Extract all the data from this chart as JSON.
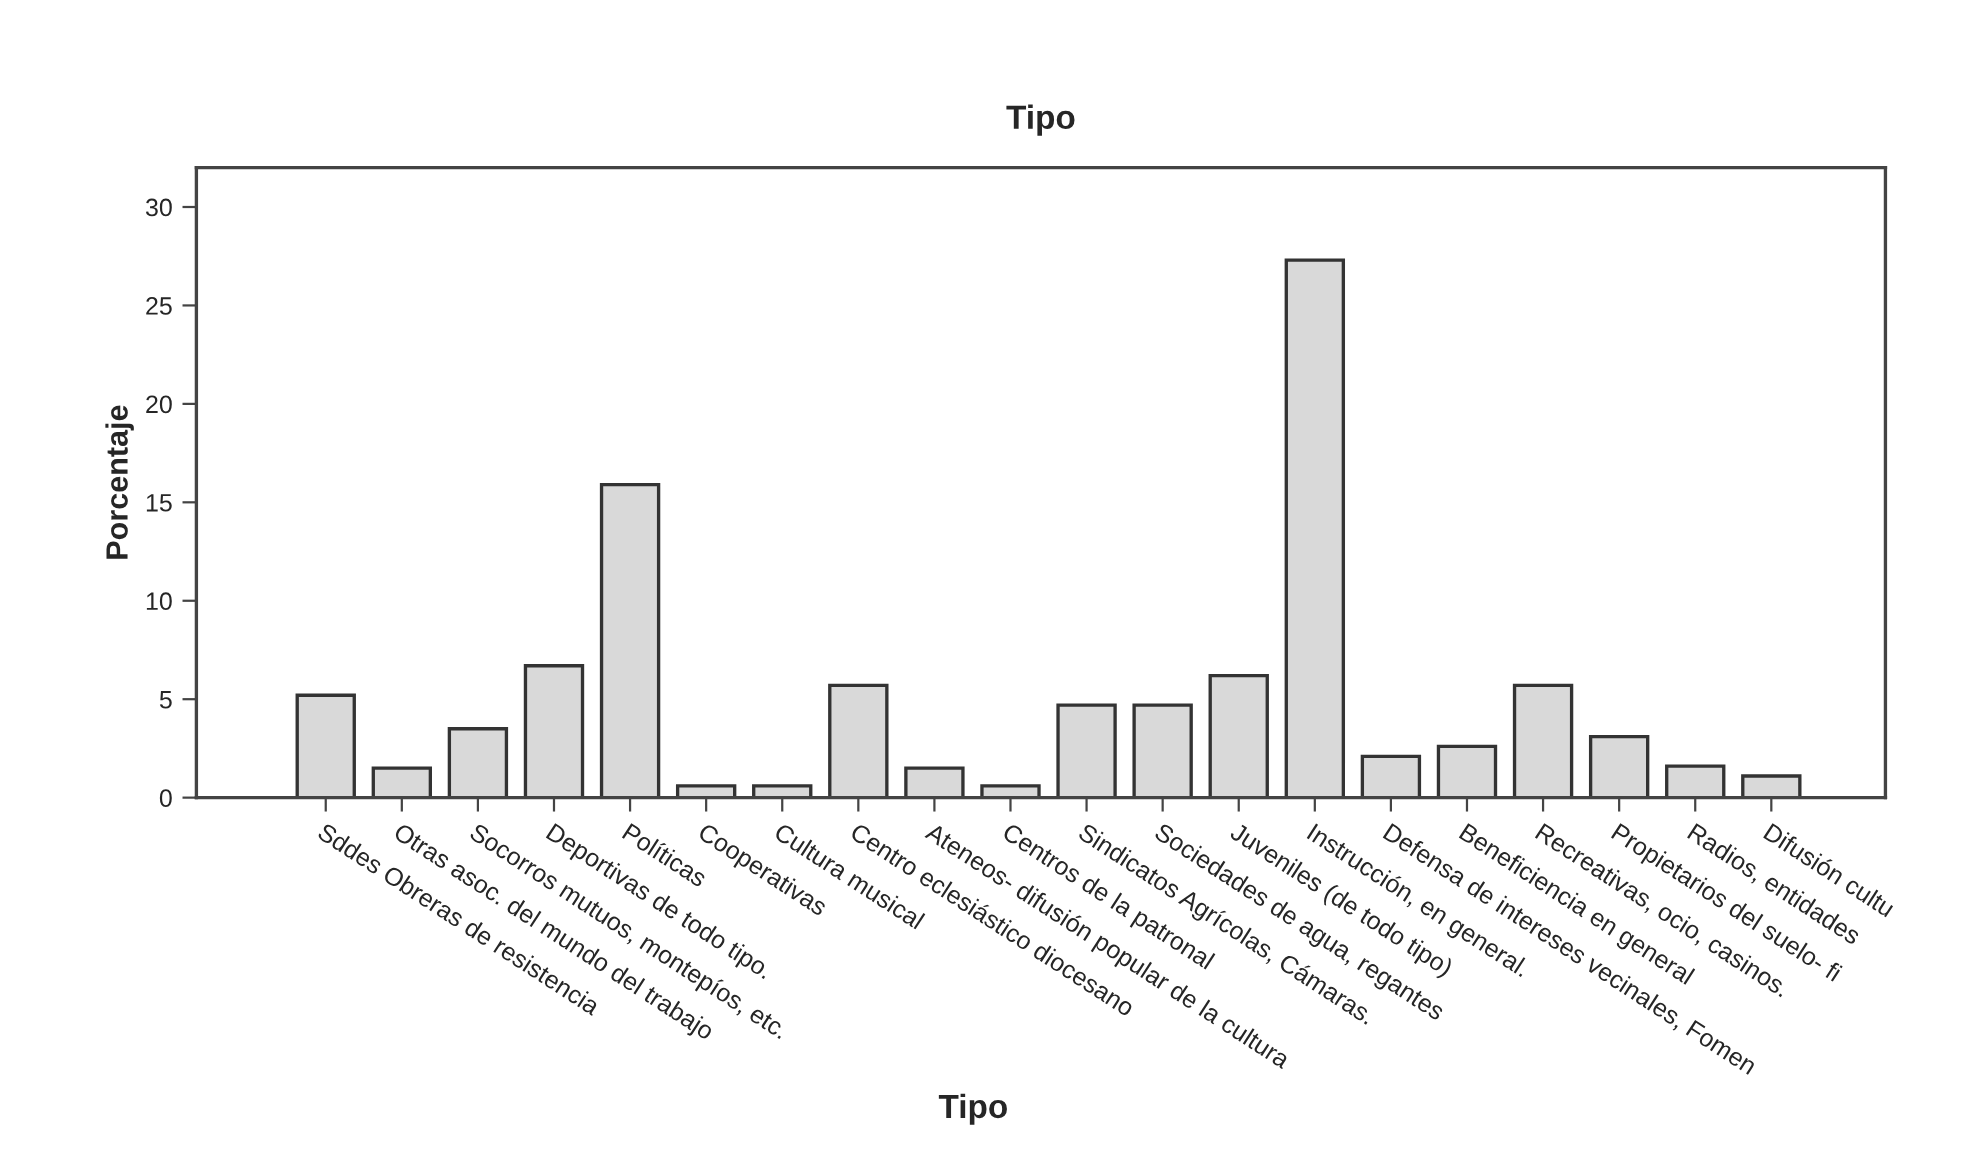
{
  "chart_data": {
    "type": "bar",
    "title": "Tipo",
    "xlabel": "Tipo",
    "ylabel": "Porcentaje",
    "categories": [
      "Sddes Obreras de resistencia",
      "Otras asoc. del mundo del trabajo",
      "Socorros mutuos, montepíos, etc.",
      "Deportivas de todo tipo.",
      "Políticas",
      "Cooperativas",
      "Cultura musical",
      "Centro eclesiástico diocesano",
      "Ateneos- difusión popular de la cultura",
      "Centros de la patronal",
      "Sindicatos Agrícolas, Cámaras.",
      "Sociedades de agua, regantes",
      "Juveniles (de todo tipo)",
      "Instrucción, en general.",
      "Defensa de intereses vecinales, Fomen",
      "Beneficiencia en general",
      "Recreativas, ocio, casinos.",
      "Propietarios del suelo- fi",
      "Radios, entidades",
      "Difusión cultu"
    ],
    "values": [
      5.2,
      1.5,
      3.5,
      6.7,
      15.9,
      0.6,
      0.6,
      5.7,
      1.5,
      0.6,
      4.7,
      4.7,
      6.2,
      27.3,
      2.1,
      2.6,
      5.7,
      3.1,
      1.6,
      1.1
    ],
    "color": "#d9d9d9",
    "ylim": [
      0,
      32
    ],
    "yticks": [
      0,
      5,
      10,
      15,
      20,
      25,
      30
    ],
    "grid": false
  }
}
